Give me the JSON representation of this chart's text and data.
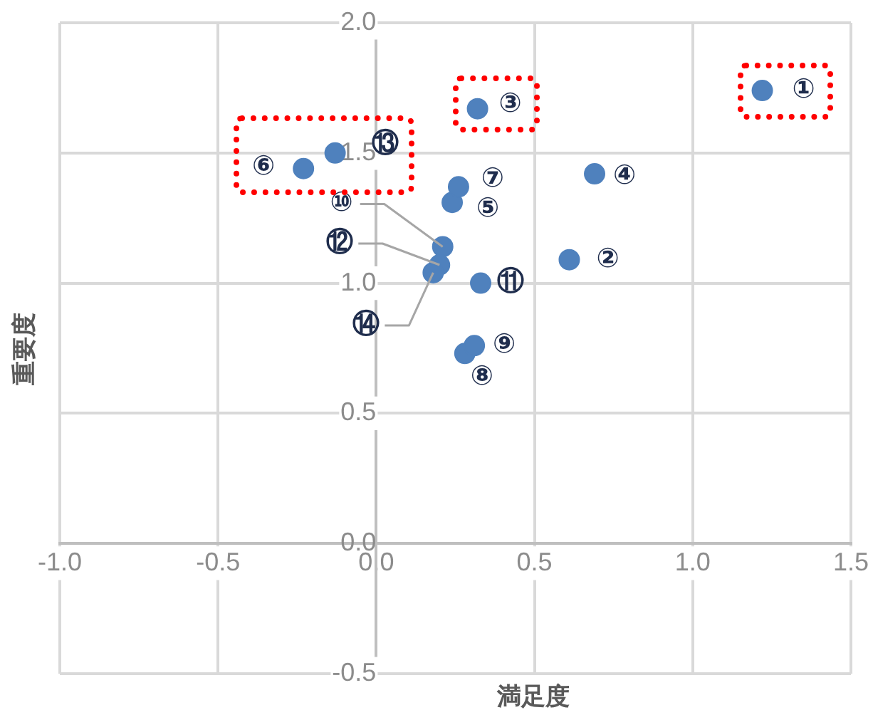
{
  "chart_data": {
    "type": "scatter",
    "xlabel": "満足度",
    "ylabel": "重要度",
    "x": [
      1.22,
      0.61,
      0.32,
      0.69,
      0.24,
      -0.23,
      0.26,
      0.28,
      0.31,
      0.21,
      0.33,
      0.2,
      -0.13,
      0.18
    ],
    "series": [
      {
        "color": "#4f81bd",
        "values": [
          1.74,
          1.09,
          1.67,
          1.42,
          1.31,
          1.44,
          1.37,
          0.73,
          0.76,
          1.14,
          1.0,
          1.07,
          1.5,
          1.04
        ]
      }
    ],
    "xlim": [
      -1.0,
      1.5
    ],
    "ylim": [
      -0.5,
      2.0
    ],
    "xticks": [
      {
        "value": -1,
        "label": "-1.0"
      },
      -0.5,
      {
        "value": 0,
        "label": "0.0"
      },
      0.5,
      {
        "value": 1,
        "label": "1.0"
      },
      1.5
    ],
    "yticks": [
      {
        "value": -0.5,
        "label": "-0.5"
      },
      {
        "value": 0,
        "label": "0.0"
      },
      0.5,
      {
        "value": 1,
        "label": "1.0"
      },
      1.5,
      {
        "value": 2,
        "label": "2.0"
      }
    ],
    "grid": true,
    "legend": false,
    "marker": "circle",
    "annotations": [
      {
        "text": "①",
        "x": 1.22,
        "y": 1.74
      },
      {
        "text": "②",
        "x": 0.61,
        "y": 1.09
      },
      {
        "text": "③",
        "x": 0.32,
        "y": 1.67
      },
      {
        "text": "④",
        "x": 0.69,
        "y": 1.42
      },
      {
        "text": "⑤",
        "x": 0.24,
        "y": 1.31
      },
      {
        "text": "⑥",
        "x": -0.23,
        "y": 1.44
      },
      {
        "text": "⑦",
        "x": 0.26,
        "y": 1.37
      },
      {
        "text": "⑧",
        "x": 0.28,
        "y": 0.73
      },
      {
        "text": "⑨",
        "x": 0.31,
        "y": 0.76
      },
      {
        "text": "⑩",
        "x": 0.21,
        "y": 1.14
      },
      {
        "text": "⑪",
        "x": 0.33,
        "y": 1.0
      },
      {
        "text": "⑫",
        "x": 0.2,
        "y": 1.07
      },
      {
        "text": "⑬",
        "x": -0.13,
        "y": 1.5
      },
      {
        "text": "⑭",
        "x": 0.18,
        "y": 1.04
      }
    ]
  }
}
